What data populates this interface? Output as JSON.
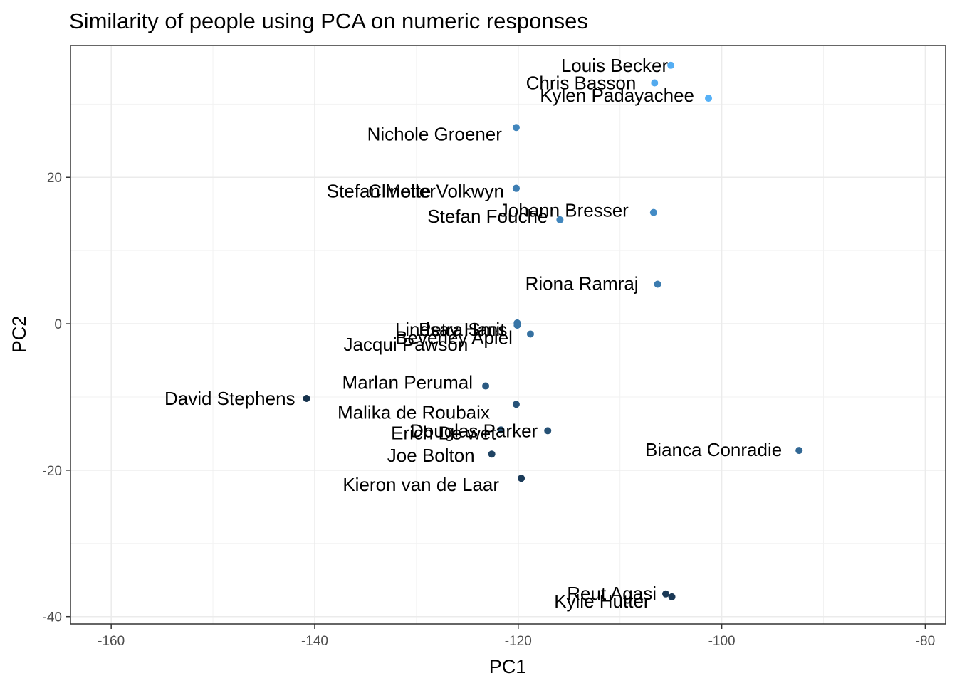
{
  "chart_data": {
    "type": "scatter",
    "title": "Similarity of people using PCA on numeric responses",
    "xlabel": "PC1",
    "ylabel": "PC2",
    "xlim": [
      -164,
      -78
    ],
    "ylim": [
      -41,
      38
    ],
    "xticks": [
      -160,
      -140,
      -120,
      -100,
      -80
    ],
    "yticks": [
      -40,
      -20,
      0,
      20
    ],
    "xtick_labels": [
      "-160",
      "-140",
      "-120",
      "-100",
      "-80"
    ],
    "ytick_labels": [
      "-40",
      "-20",
      "0",
      "20"
    ],
    "grid": true,
    "legend": "none",
    "color_scale": [
      "#132B43",
      "#56B1F7"
    ],
    "points": [
      {
        "label": "Louis Becker",
        "x": -105.0,
        "y": 35.3,
        "shade": 0.98,
        "label_dx": -4,
        "label_dy": 0
      },
      {
        "label": "Chris Basson",
        "x": -106.6,
        "y": 32.9,
        "shade": 0.95,
        "label_dx": -26,
        "label_dy": 0
      },
      {
        "label": "Kylen Padayachee",
        "x": -101.3,
        "y": 30.8,
        "shade": 1.0,
        "label_dx": -20,
        "label_dy": -4
      },
      {
        "label": "Nichole Groener",
        "x": -120.2,
        "y": 26.8,
        "shade": 0.68,
        "label_dx": -20,
        "label_dy": 9
      },
      {
        "label": "Stefan Moller",
        "x": -120.2,
        "y": 18.5,
        "shade": 0.62,
        "label_dx": -113,
        "label_dy": 4
      },
      {
        "label": "Clinette Volkwyn",
        "x": -120.2,
        "y": 18.5,
        "shade": 0.62,
        "label_dx": -17,
        "label_dy": 4
      },
      {
        "label": "Johann Bresser",
        "x": -106.7,
        "y": 15.2,
        "shade": 0.72,
        "label_dx": -35,
        "label_dy": -3
      },
      {
        "label": "Stefan Fouche",
        "x": -115.9,
        "y": 14.2,
        "shade": 0.68,
        "label_dx": -17,
        "label_dy": -5
      },
      {
        "label": "Riona Ramraj",
        "x": -106.3,
        "y": 5.4,
        "shade": 0.6,
        "label_dx": -27,
        "label_dy": -1
      },
      {
        "label": "Lindsay Hans",
        "x": -120.1,
        "y": 0.1,
        "shade": 0.55,
        "label_dx": -14,
        "label_dy": 9
      },
      {
        "label": "Petra Smit",
        "x": -120.1,
        "y": 0.1,
        "shade": 0.55,
        "label_dx": -17,
        "label_dy": 9
      },
      {
        "label": "Beverley Apiel",
        "x": -118.8,
        "y": -1.4,
        "shade": 0.52,
        "label_dx": -25,
        "label_dy": 5
      },
      {
        "label": "Jacqui Pawson",
        "x": -120.1,
        "y": -0.2,
        "shade": 0.55,
        "label_dx": -69,
        "label_dy": 27
      },
      {
        "label": "Marlan Perumal",
        "x": -123.2,
        "y": -8.5,
        "shade": 0.35,
        "label_dx": -18,
        "label_dy": -5
      },
      {
        "label": "David Stephens",
        "x": -140.8,
        "y": -10.2,
        "shade": 0.05,
        "label_dx": -16,
        "label_dy": 0
      },
      {
        "label": "Malika de Roubaix",
        "x": -120.2,
        "y": -11.0,
        "shade": 0.3,
        "label_dx": -37,
        "label_dy": 11
      },
      {
        "label": "Douglas Parker",
        "x": -117.1,
        "y": -14.6,
        "shade": 0.28,
        "label_dx": -14,
        "label_dy": 0
      },
      {
        "label": "Erich De wet",
        "x": -121.7,
        "y": -14.5,
        "shade": 0.28,
        "label_dx": -7,
        "label_dy": 4
      },
      {
        "label": "Bianca Conradie",
        "x": -92.4,
        "y": -17.3,
        "shade": 0.45,
        "label_dx": -24,
        "label_dy": -1
      },
      {
        "label": "Joe Bolton",
        "x": -122.6,
        "y": -17.8,
        "shade": 0.18,
        "label_dx": -24,
        "label_dy": 2
      },
      {
        "label": "Kieron van de Laar",
        "x": -119.7,
        "y": -21.1,
        "shade": 0.12,
        "label_dx": -31,
        "label_dy": 9
      },
      {
        "label": "Reut Agasi",
        "x": -105.5,
        "y": -36.9,
        "shade": 0.1,
        "label_dx": -13,
        "label_dy": -1
      },
      {
        "label": "Kylie Hutter",
        "x": -104.9,
        "y": -37.3,
        "shade": 0.1,
        "label_dx": -31,
        "label_dy": 6
      }
    ]
  }
}
